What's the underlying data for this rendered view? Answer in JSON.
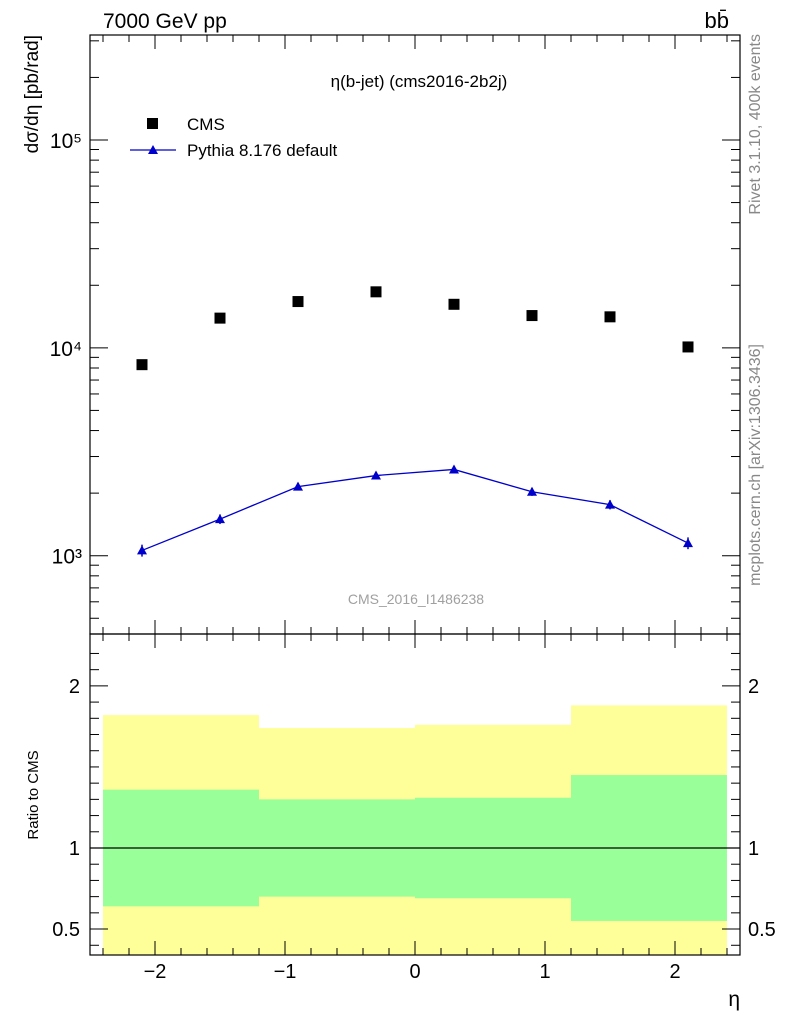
{
  "header": {
    "left": "7000 GeV pp",
    "right": "bb̄"
  },
  "side_labels": {
    "top": "Rivet 3.1.10,  400k events",
    "bottom": "mcplots.cern.ch [arXiv:1306.3436]"
  },
  "chart_data": [
    {
      "type": "scatter",
      "panel": "main",
      "title": "η(b-jet) (cms2016-2b2j)",
      "watermark": "CMS_2016_I1486238",
      "ylabel": "dσ/dη [pb/rad]",
      "xlabel": "",
      "yscale": "log",
      "xlim": [
        -2.5,
        2.5
      ],
      "ylim": [
        420,
        320000
      ],
      "y_ticks": [
        {
          "value": 1000,
          "label": "10³"
        },
        {
          "value": 10000,
          "label": "10⁴"
        },
        {
          "value": 100000,
          "label": "10⁵"
        }
      ],
      "legend": {
        "placement": "top-left"
      },
      "series": [
        {
          "name": "CMS",
          "marker": "square",
          "color": "#000000",
          "x": [
            -2.1,
            -1.5,
            -0.9,
            -0.3,
            0.3,
            0.9,
            1.5,
            2.1
          ],
          "y": [
            8300,
            13900,
            16700,
            18600,
            16200,
            14300,
            14100,
            10100
          ]
        },
        {
          "name": "Pythia 8.176 default",
          "marker": "triangle",
          "color": "#0000cc",
          "x": [
            -2.1,
            -1.5,
            -0.9,
            -0.3,
            0.3,
            0.9,
            1.5,
            2.1
          ],
          "y": [
            1060,
            1500,
            2150,
            2430,
            2600,
            2030,
            1760,
            1150
          ],
          "yerr": [
            70,
            80,
            90,
            90,
            90,
            90,
            90,
            75
          ]
        }
      ]
    },
    {
      "type": "area",
      "panel": "ratio",
      "ylabel": "Ratio to CMS",
      "xlabel": "η",
      "xlim": [
        -2.5,
        2.5
      ],
      "ylim": [
        0.34,
        2.32
      ],
      "x_ticks": [
        {
          "value": -2,
          "label": "−2"
        },
        {
          "value": -1,
          "label": "−1"
        },
        {
          "value": 0,
          "label": "0"
        },
        {
          "value": 1,
          "label": "1"
        },
        {
          "value": 2,
          "label": "2"
        }
      ],
      "y_ticks": [
        {
          "value": 0.5,
          "label": "0.5"
        },
        {
          "value": 1,
          "label": "1"
        },
        {
          "value": 2,
          "label": "2"
        }
      ],
      "reference_line": 1,
      "bins": [
        {
          "x_lo": -2.4,
          "x_hi": -1.2,
          "yellow_lo": 0.34,
          "yellow_hi": 1.82,
          "green_lo": 0.64,
          "green_hi": 1.36
        },
        {
          "x_lo": -1.2,
          "x_hi": 0.0,
          "yellow_lo": 0.34,
          "yellow_hi": 1.74,
          "green_lo": 0.7,
          "green_hi": 1.3
        },
        {
          "x_lo": 0.0,
          "x_hi": 1.2,
          "yellow_lo": 0.34,
          "yellow_hi": 1.76,
          "green_lo": 0.69,
          "green_hi": 1.31
        },
        {
          "x_lo": 1.2,
          "x_hi": 2.4,
          "yellow_lo": 0.34,
          "yellow_hi": 1.88,
          "green_lo": 0.55,
          "green_hi": 1.45
        }
      ],
      "colors": {
        "yellow": "#ffff99",
        "green": "#99ff99"
      }
    }
  ]
}
